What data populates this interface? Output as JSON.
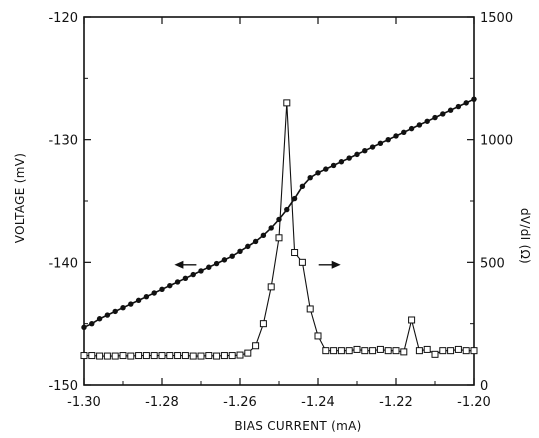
{
  "chart_data": {
    "type": "line",
    "title": "",
    "xlabel": "BIAS CURRENT (mA)",
    "ylabel": "VOLTAGE (mV)",
    "y2label": "dV/dI (Ω)",
    "xlim": [
      -1.3,
      -1.2
    ],
    "ylim": [
      -150,
      -120
    ],
    "y2lim": [
      0,
      1500
    ],
    "x_ticks": [
      -1.3,
      -1.28,
      -1.26,
      -1.24,
      -1.22,
      -1.2
    ],
    "x_tick_labels": [
      "-1.30",
      "-1.28",
      "-1.26",
      "-1.24",
      "-1.22",
      "-1.20"
    ],
    "y_ticks": [
      -150,
      -140,
      -130,
      -120
    ],
    "y_tick_labels": [
      "-150",
      "-140",
      "-130",
      "-120"
    ],
    "y2_ticks": [
      0,
      500,
      1000,
      1500
    ],
    "y2_tick_labels": [
      "0",
      "500",
      "1000",
      "1500"
    ],
    "grid": false,
    "series": [
      {
        "axis": "left",
        "marker": "filled-circle",
        "color": "#111111",
        "x": [
          -1.3,
          -1.298,
          -1.296,
          -1.294,
          -1.292,
          -1.29,
          -1.288,
          -1.286,
          -1.284,
          -1.282,
          -1.28,
          -1.278,
          -1.276,
          -1.274,
          -1.272,
          -1.27,
          -1.268,
          -1.266,
          -1.264,
          -1.262,
          -1.26,
          -1.258,
          -1.256,
          -1.254,
          -1.252,
          -1.25,
          -1.248,
          -1.246,
          -1.244,
          -1.242,
          -1.24,
          -1.238,
          -1.236,
          -1.234,
          -1.232,
          -1.23,
          -1.228,
          -1.226,
          -1.224,
          -1.222,
          -1.22,
          -1.218,
          -1.216,
          -1.214,
          -1.212,
          -1.21,
          -1.208,
          -1.206,
          -1.204,
          -1.202,
          -1.2
        ],
        "y": [
          -145.3,
          -145.0,
          -144.6,
          -144.3,
          -144.0,
          -143.7,
          -143.4,
          -143.1,
          -142.8,
          -142.5,
          -142.2,
          -141.9,
          -141.6,
          -141.3,
          -141.0,
          -140.7,
          -140.4,
          -140.1,
          -139.8,
          -139.5,
          -139.1,
          -138.7,
          -138.3,
          -137.8,
          -137.2,
          -136.5,
          -135.7,
          -134.8,
          -133.8,
          -133.1,
          -132.7,
          -132.4,
          -132.1,
          -131.8,
          -131.5,
          -131.2,
          -130.9,
          -130.6,
          -130.3,
          -130.0,
          -129.7,
          -129.4,
          -129.1,
          -128.8,
          -128.5,
          -128.2,
          -127.9,
          -127.6,
          -127.3,
          -127.0,
          -126.7
        ]
      },
      {
        "axis": "right",
        "marker": "open-square",
        "color": "#111111",
        "x": [
          -1.3,
          -1.298,
          -1.296,
          -1.294,
          -1.292,
          -1.29,
          -1.288,
          -1.286,
          -1.284,
          -1.282,
          -1.28,
          -1.278,
          -1.276,
          -1.274,
          -1.272,
          -1.27,
          -1.268,
          -1.266,
          -1.264,
          -1.262,
          -1.26,
          -1.258,
          -1.256,
          -1.254,
          -1.252,
          -1.25,
          -1.248,
          -1.246,
          -1.244,
          -1.242,
          -1.24,
          -1.238,
          -1.236,
          -1.234,
          -1.232,
          -1.23,
          -1.228,
          -1.226,
          -1.224,
          -1.222,
          -1.22,
          -1.218,
          -1.216,
          -1.214,
          -1.212,
          -1.21,
          -1.208,
          -1.206,
          -1.204,
          -1.202,
          -1.2
        ],
        "y": [
          120,
          120,
          118,
          118,
          118,
          120,
          118,
          120,
          120,
          120,
          120,
          120,
          120,
          120,
          118,
          118,
          120,
          118,
          120,
          120,
          122,
          130,
          160,
          250,
          400,
          600,
          1150,
          540,
          500,
          310,
          200,
          140,
          140,
          140,
          140,
          145,
          140,
          140,
          145,
          140,
          140,
          135,
          265,
          140,
          145,
          125,
          140,
          140,
          145,
          140,
          140
        ]
      }
    ],
    "annotations": [
      {
        "type": "arrow-left",
        "x": -1.274,
        "y": -140.2,
        "refers_to": "left"
      },
      {
        "type": "arrow-right",
        "x": -1.237,
        "y": -140.2,
        "refers_to": "right"
      }
    ]
  }
}
